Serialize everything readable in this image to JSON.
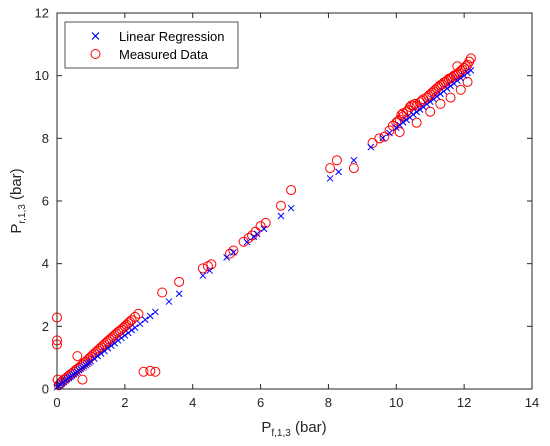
{
  "chart_data": {
    "type": "scatter",
    "xlabel": {
      "main": "P",
      "sub": "f,1,3",
      "unit": " (bar)"
    },
    "ylabel": {
      "main": "P",
      "sub": "r,1,3",
      "unit": " (bar)"
    },
    "xlim": [
      0,
      14
    ],
    "ylim": [
      0,
      12
    ],
    "xticks": [
      "0",
      "2",
      "4",
      "6",
      "8",
      "10",
      "12",
      "14"
    ],
    "yticks": [
      "0",
      "2",
      "4",
      "6",
      "8",
      "10",
      "12"
    ],
    "grid": false,
    "legend_position": "top-left",
    "series": [
      {
        "name": "Linear Regression",
        "marker": "x",
        "color": "#0000ff",
        "x": [
          0.0,
          0.05,
          0.1,
          0.15,
          0.2,
          0.25,
          0.3,
          0.35,
          0.4,
          0.45,
          0.5,
          0.55,
          0.6,
          0.65,
          0.7,
          0.75,
          0.8,
          0.85,
          0.9,
          0.95,
          1.0,
          1.1,
          1.2,
          1.3,
          1.4,
          1.5,
          1.6,
          1.7,
          1.8,
          1.9,
          2.0,
          2.1,
          2.2,
          2.3,
          2.45,
          2.6,
          2.75,
          2.9,
          3.3,
          3.6,
          4.3,
          4.5,
          5.0,
          5.2,
          5.6,
          5.8,
          5.9,
          6.1,
          6.6,
          6.9,
          8.05,
          8.3,
          8.75,
          9.25,
          9.6,
          9.8,
          10.0,
          10.1,
          10.2,
          10.3,
          10.4,
          10.5,
          10.6,
          10.7,
          10.8,
          10.9,
          11.0,
          11.1,
          11.2,
          11.3,
          11.4,
          11.5,
          11.6,
          11.7,
          11.8,
          11.9,
          12.0,
          12.1,
          12.2
        ],
        "y": [
          0.06,
          0.1,
          0.14,
          0.18,
          0.22,
          0.27,
          0.31,
          0.35,
          0.39,
          0.43,
          0.47,
          0.51,
          0.55,
          0.6,
          0.64,
          0.68,
          0.72,
          0.76,
          0.8,
          0.84,
          0.88,
          0.97,
          1.05,
          1.13,
          1.21,
          1.3,
          1.38,
          1.46,
          1.55,
          1.63,
          1.71,
          1.79,
          1.88,
          1.96,
          2.08,
          2.21,
          2.33,
          2.46,
          2.79,
          3.04,
          3.62,
          3.78,
          4.2,
          4.36,
          4.69,
          4.86,
          4.95,
          5.11,
          5.52,
          5.77,
          6.72,
          6.93,
          7.3,
          7.72,
          8.01,
          8.17,
          8.34,
          8.42,
          8.51,
          8.59,
          8.67,
          8.76,
          8.84,
          8.92,
          9.0,
          9.09,
          9.17,
          9.25,
          9.34,
          9.42,
          9.5,
          9.59,
          9.67,
          9.75,
          9.84,
          9.92,
          10.0,
          10.09,
          10.17
        ]
      },
      {
        "name": "Measured Data",
        "marker": "circle",
        "color": "#ff0000",
        "x": [
          0.0,
          0.0,
          0.0,
          0.02,
          0.05,
          0.1,
          0.15,
          0.2,
          0.25,
          0.3,
          0.35,
          0.4,
          0.45,
          0.5,
          0.55,
          0.6,
          0.65,
          0.7,
          0.75,
          0.8,
          0.85,
          0.9,
          0.95,
          1.0,
          1.05,
          1.1,
          1.15,
          1.2,
          1.25,
          1.3,
          1.35,
          1.4,
          1.45,
          1.5,
          1.55,
          1.6,
          1.65,
          1.7,
          1.75,
          1.8,
          1.85,
          1.9,
          1.95,
          2.0,
          2.05,
          2.1,
          2.15,
          2.2,
          2.3,
          2.4,
          0.6,
          0.75,
          2.55,
          2.75,
          2.9,
          3.1,
          3.6,
          4.3,
          4.45,
          4.55,
          5.1,
          5.2,
          5.5,
          5.65,
          5.75,
          5.85,
          6.0,
          6.15,
          6.6,
          6.9,
          8.05,
          8.25,
          8.75,
          9.3,
          9.5,
          9.65,
          9.8,
          9.9,
          10.0,
          10.05,
          10.1,
          10.15,
          10.2,
          10.3,
          10.35,
          10.4,
          10.5,
          10.55,
          10.6,
          10.7,
          10.75,
          10.8,
          10.9,
          10.95,
          11.0,
          11.05,
          11.1,
          11.15,
          11.2,
          11.25,
          11.3,
          11.35,
          11.4,
          11.45,
          11.5,
          11.55,
          11.6,
          11.65,
          11.7,
          11.75,
          11.8,
          11.85,
          11.9,
          11.95,
          12.0,
          12.05,
          12.1,
          12.15,
          12.2,
          10.1,
          10.6,
          11.0,
          11.3,
          11.6,
          11.9,
          12.1,
          10.2,
          10.45,
          11.8
        ],
        "y": [
          2.28,
          1.55,
          1.42,
          0.3,
          0.12,
          0.18,
          0.24,
          0.3,
          0.33,
          0.38,
          0.42,
          0.47,
          0.5,
          0.55,
          0.6,
          0.64,
          0.68,
          0.73,
          0.78,
          0.83,
          0.87,
          0.92,
          0.98,
          1.03,
          1.08,
          1.13,
          1.18,
          1.23,
          1.28,
          1.33,
          1.38,
          1.43,
          1.48,
          1.53,
          1.58,
          1.62,
          1.67,
          1.72,
          1.77,
          1.82,
          1.86,
          1.9,
          1.95,
          2.0,
          2.05,
          2.1,
          2.15,
          2.2,
          2.3,
          2.4,
          1.05,
          0.3,
          0.55,
          0.58,
          0.55,
          3.08,
          3.42,
          3.85,
          3.92,
          3.98,
          4.32,
          4.42,
          4.7,
          4.82,
          4.9,
          5.02,
          5.2,
          5.3,
          5.85,
          6.35,
          7.05,
          7.3,
          7.05,
          7.85,
          8.0,
          8.05,
          8.25,
          8.4,
          8.5,
          8.55,
          8.6,
          8.75,
          8.8,
          8.85,
          8.9,
          9.0,
          9.05,
          9.1,
          9.05,
          9.15,
          9.2,
          9.25,
          9.3,
          9.35,
          9.4,
          9.45,
          9.5,
          9.55,
          9.6,
          9.65,
          9.7,
          9.72,
          9.78,
          9.8,
          9.85,
          9.9,
          9.92,
          9.95,
          10.0,
          10.02,
          10.05,
          10.1,
          10.15,
          10.2,
          10.25,
          10.3,
          10.35,
          10.45,
          10.55,
          8.2,
          8.5,
          8.85,
          9.1,
          9.3,
          9.55,
          9.8,
          8.7,
          9.05,
          10.3
        ]
      }
    ]
  }
}
